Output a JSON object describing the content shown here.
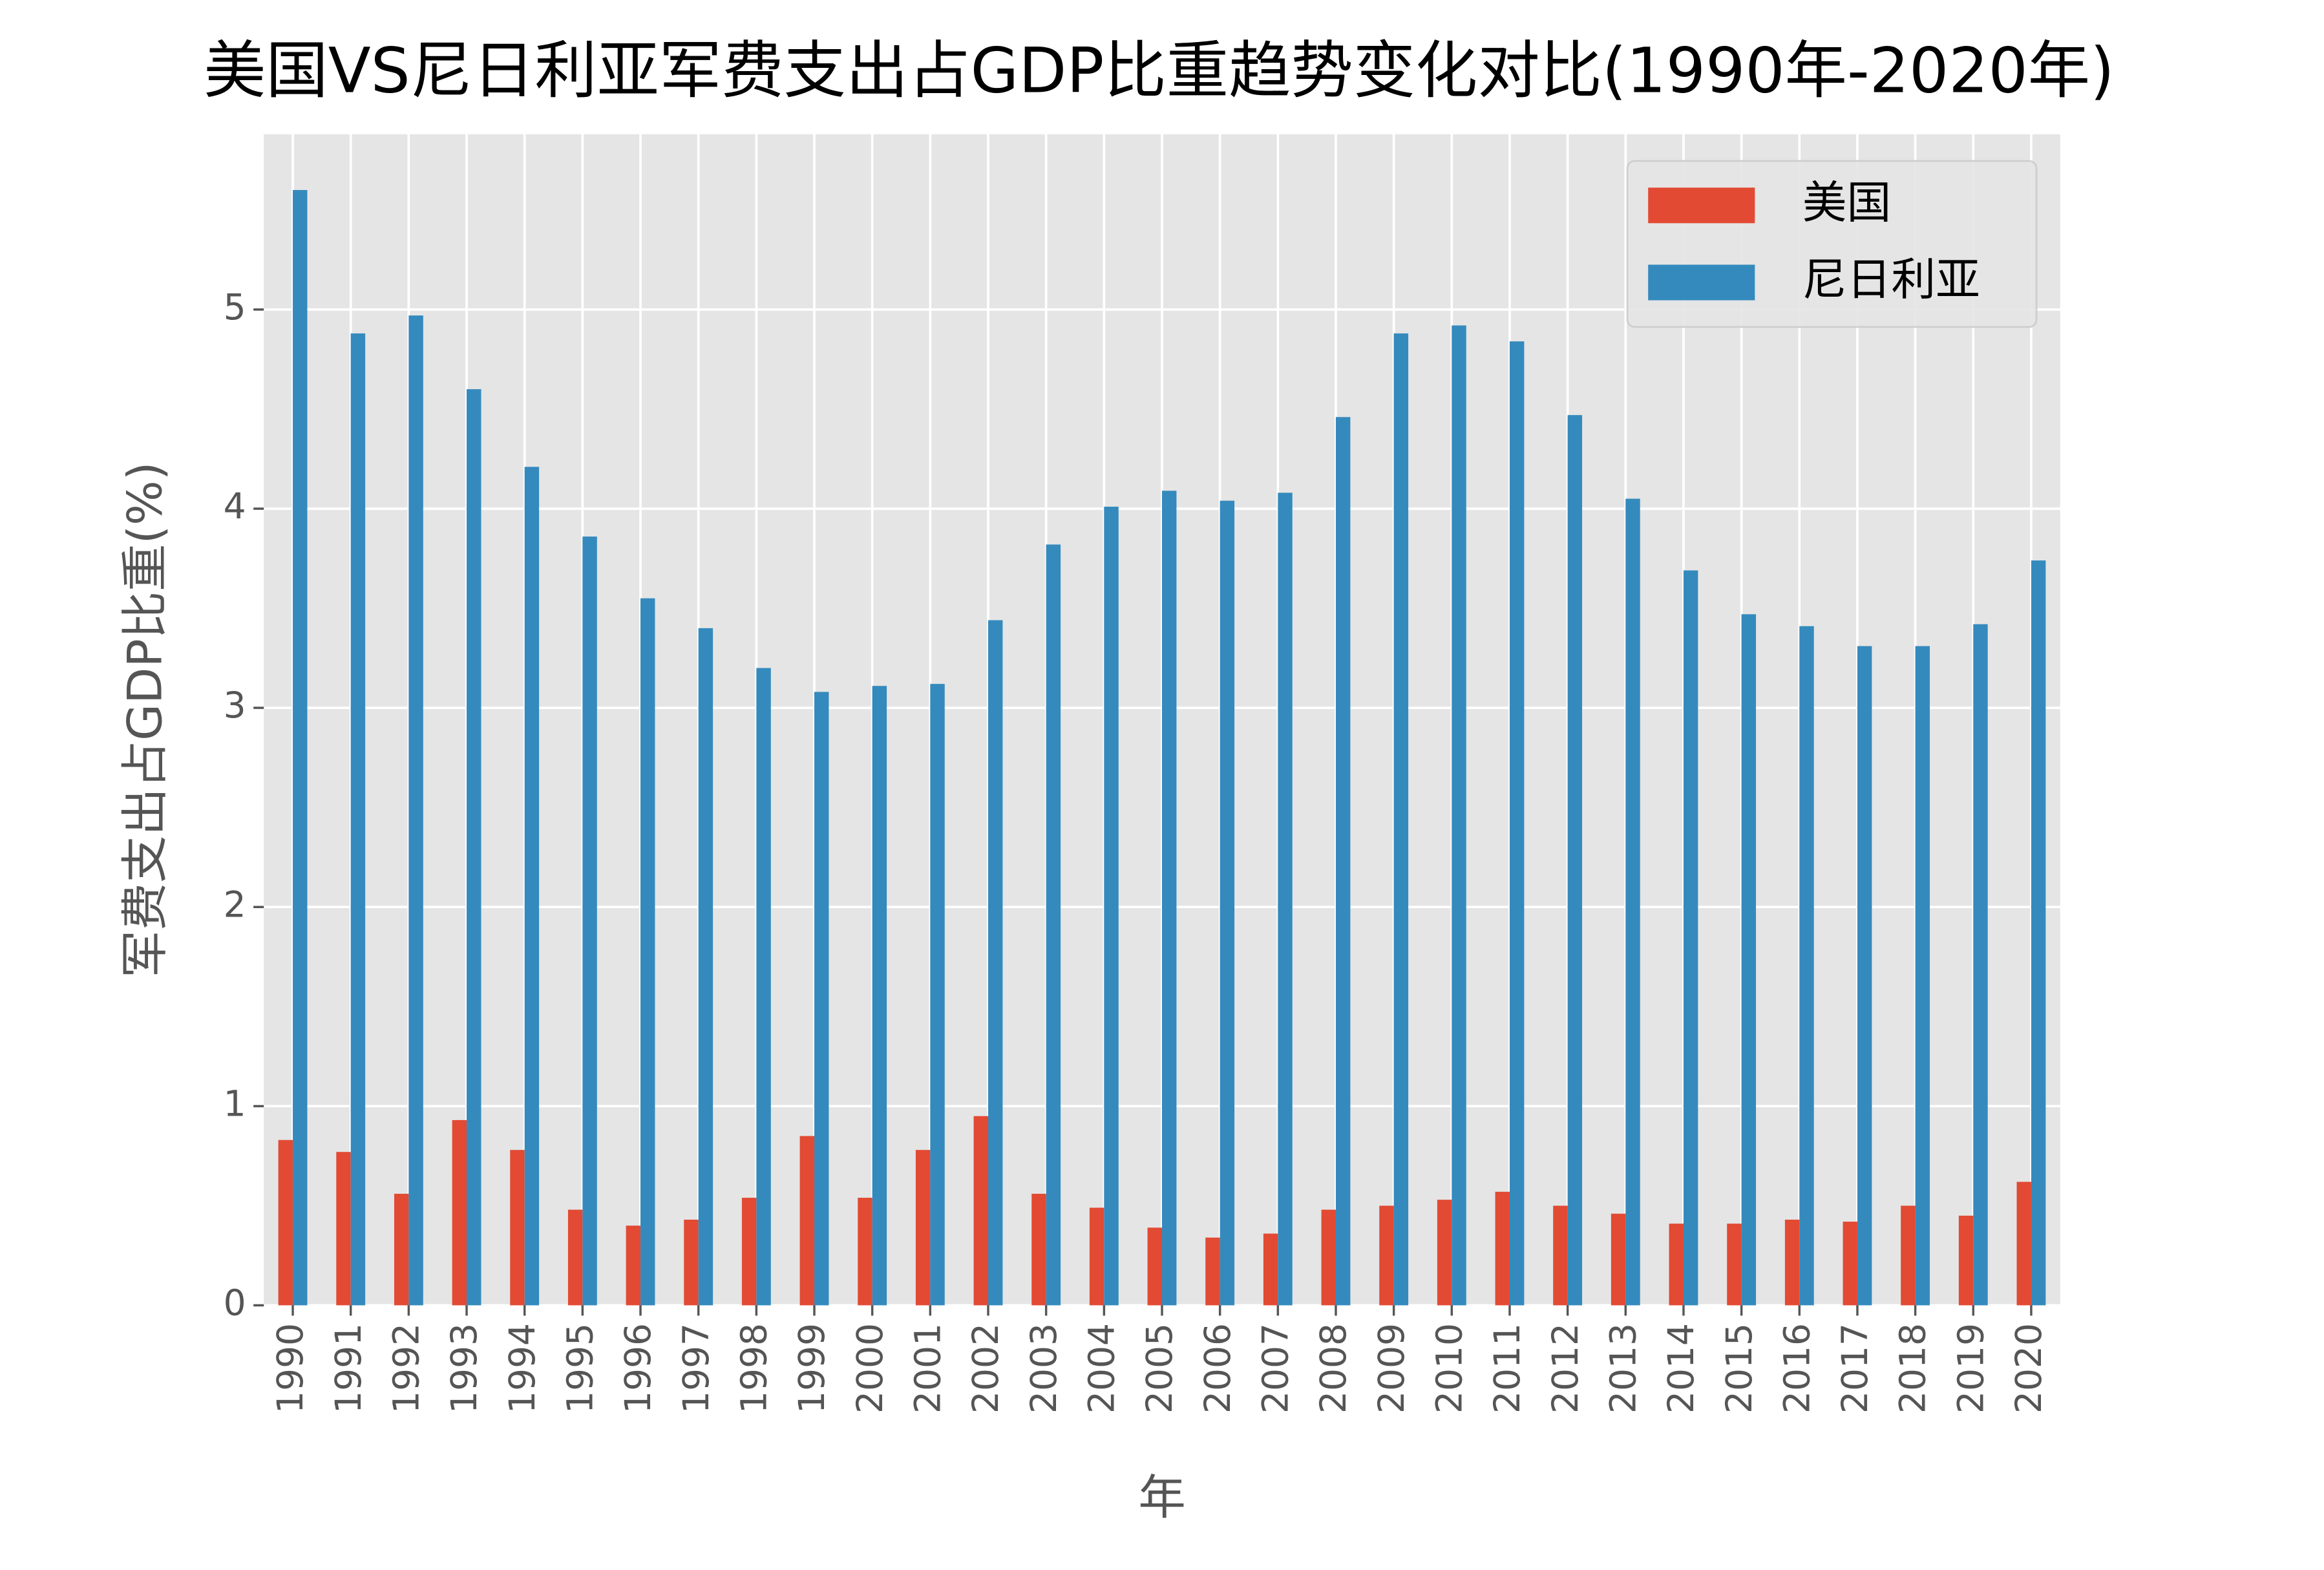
{
  "chart_data": {
    "type": "bar",
    "title": "美国VS尼日利亚军费支出占GDP比重趋势变化对比(1990年-2020年)",
    "x_label": "年",
    "y_label": "军费支出占GDP比重(%)",
    "categories": [
      "1990",
      "1991",
      "1992",
      "1993",
      "1994",
      "1995",
      "1996",
      "1997",
      "1998",
      "1999",
      "2000",
      "2001",
      "2002",
      "2003",
      "2004",
      "2005",
      "2006",
      "2007",
      "2008",
      "2009",
      "2010",
      "2011",
      "2012",
      "2013",
      "2014",
      "2015",
      "2016",
      "2017",
      "2018",
      "2019",
      "2020"
    ],
    "series": [
      {
        "name": "美国",
        "color": "#E24A33",
        "values": [
          0.83,
          0.77,
          0.56,
          0.93,
          0.78,
          0.48,
          0.4,
          0.43,
          0.54,
          0.85,
          0.54,
          0.78,
          0.95,
          0.56,
          0.49,
          0.39,
          0.34,
          0.36,
          0.48,
          0.5,
          0.53,
          0.57,
          0.5,
          0.46,
          0.41,
          0.41,
          0.43,
          0.42,
          0.5,
          0.45,
          0.62
        ]
      },
      {
        "name": "尼日利亚",
        "color": "#348ABD",
        "values": [
          5.6,
          4.88,
          4.97,
          4.6,
          4.21,
          3.86,
          3.55,
          3.4,
          3.2,
          3.08,
          3.11,
          3.12,
          3.44,
          3.82,
          4.01,
          4.09,
          4.04,
          4.08,
          4.46,
          4.88,
          4.92,
          4.84,
          4.47,
          4.05,
          3.69,
          3.47,
          3.41,
          3.31,
          3.31,
          3.42,
          3.74
        ]
      }
    ],
    "ylim": [
      0,
      5.88
    ],
    "yticks": [
      0,
      1,
      2,
      3,
      4,
      5
    ],
    "grid": true,
    "legend": "upper-right"
  }
}
